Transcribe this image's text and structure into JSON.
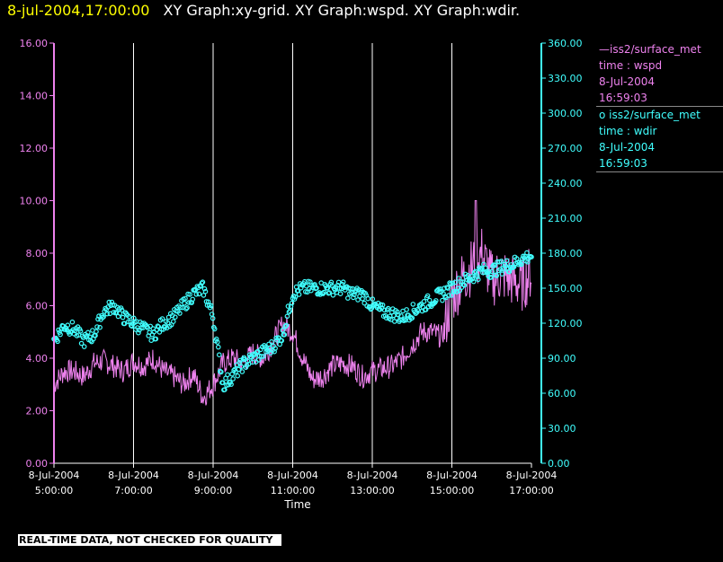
{
  "header": {
    "timestamp": "8-jul-2004,17:00:00",
    "title": "XY Graph:xy-grid.  XY Graph:wspd.  XY Graph:wdir."
  },
  "legend": [
    {
      "label": "iss2/surface_met",
      "marker": "—",
      "field": "time : wspd",
      "date": "8-Jul-2004",
      "time": "16:59:03"
    },
    {
      "label": "iss2/surface_met",
      "marker": "o",
      "field": "time : wdir",
      "date": "8-Jul-2004",
      "time": "16:59:03"
    }
  ],
  "disclaimer": "REAL-TIME DATA, NOT CHECKED FOR QUALITY",
  "colors": {
    "wspd": "#ee82ee",
    "wdir": "#40ffff",
    "grid": "#ffffff",
    "axis_left": "#ee82ee",
    "axis_right": "#40ffff",
    "ticklabel_x": "#ffffff"
  },
  "chart_data": {
    "type": "line",
    "xlabel": "Time",
    "xlim": [
      5,
      17
    ],
    "x_ticks": [
      {
        "value": 5,
        "date": "8-Jul-2004",
        "time": "5:00:00"
      },
      {
        "value": 7,
        "date": "8-Jul-2004",
        "time": "7:00:00"
      },
      {
        "value": 9,
        "date": "8-Jul-2004",
        "time": "9:00:00"
      },
      {
        "value": 11,
        "date": "8-Jul-2004",
        "time": "11:00:00"
      },
      {
        "value": 13,
        "date": "8-Jul-2004",
        "time": "13:00:00"
      },
      {
        "value": 15,
        "date": "8-Jul-2004",
        "time": "15:00:00"
      },
      {
        "value": 17,
        "date": "8-Jul-2004",
        "time": "17:00:00"
      }
    ],
    "y_left": {
      "ylim": [
        0,
        16
      ],
      "ticks": [
        "0.00",
        "2.00",
        "4.00",
        "6.00",
        "8.00",
        "10.00",
        "12.00",
        "14.00",
        "16.00"
      ]
    },
    "y_right": {
      "ylim": [
        0,
        360
      ],
      "ticks": [
        "0.00",
        "30.00",
        "60.00",
        "90.00",
        "120.00",
        "150.00",
        "180.00",
        "210.00",
        "240.00",
        "270.00",
        "300.00",
        "330.00",
        "360.00"
      ]
    },
    "grid": "vertical",
    "legend_position": "right",
    "series": [
      {
        "field": "wspd",
        "style": "line",
        "axis": "left",
        "x": [
          5.0,
          5.25,
          5.5,
          5.75,
          6.0,
          6.25,
          6.5,
          6.75,
          7.0,
          7.25,
          7.5,
          7.75,
          8.0,
          8.25,
          8.5,
          8.75,
          9.0,
          9.25,
          9.5,
          9.75,
          10.0,
          10.25,
          10.5,
          10.75,
          11.0,
          11.25,
          11.5,
          11.75,
          12.0,
          12.25,
          12.5,
          12.75,
          13.0,
          13.25,
          13.5,
          13.75,
          14.0,
          14.25,
          14.5,
          14.75,
          15.0,
          15.25,
          15.5,
          15.75,
          16.0,
          16.25,
          16.5,
          16.75,
          17.0
        ],
        "y": [
          3.0,
          3.5,
          3.5,
          3.3,
          3.8,
          3.9,
          3.7,
          3.5,
          3.9,
          3.7,
          4.0,
          3.5,
          3.3,
          3.0,
          3.4,
          2.5,
          3.0,
          3.8,
          4.0,
          3.8,
          4.2,
          4.0,
          4.6,
          5.3,
          5.0,
          4.0,
          3.2,
          3.3,
          3.7,
          3.8,
          3.7,
          3.3,
          3.5,
          3.6,
          3.7,
          4.0,
          4.5,
          5.0,
          5.0,
          4.8,
          6.3,
          7.0,
          7.5,
          8.0,
          7.0,
          7.2,
          7.0,
          6.8,
          7.3
        ]
      },
      {
        "field": "wdir",
        "style": "markers",
        "marker": "o",
        "axis": "right",
        "x": [
          5.0,
          5.25,
          5.5,
          5.75,
          6.0,
          6.25,
          6.5,
          6.75,
          7.0,
          7.25,
          7.5,
          7.75,
          8.0,
          8.25,
          8.5,
          8.75,
          9.0,
          9.25,
          9.5,
          9.75,
          10.0,
          10.25,
          10.5,
          10.75,
          11.0,
          11.25,
          11.5,
          11.75,
          12.0,
          12.25,
          12.5,
          12.75,
          13.0,
          13.25,
          13.5,
          13.75,
          14.0,
          14.25,
          14.5,
          14.75,
          15.0,
          15.25,
          15.5,
          15.75,
          16.0,
          16.25,
          16.5,
          16.75,
          17.0
        ],
        "y": [
          105,
          118,
          115,
          105,
          110,
          130,
          135,
          125,
          120,
          115,
          110,
          120,
          125,
          135,
          145,
          150,
          125,
          67,
          75,
          85,
          90,
          95,
          100,
          110,
          145,
          150,
          150,
          150,
          150,
          150,
          145,
          145,
          135,
          130,
          128,
          125,
          130,
          135,
          140,
          145,
          150,
          155,
          160,
          165,
          165,
          168,
          170,
          175,
          178
        ]
      }
    ]
  }
}
